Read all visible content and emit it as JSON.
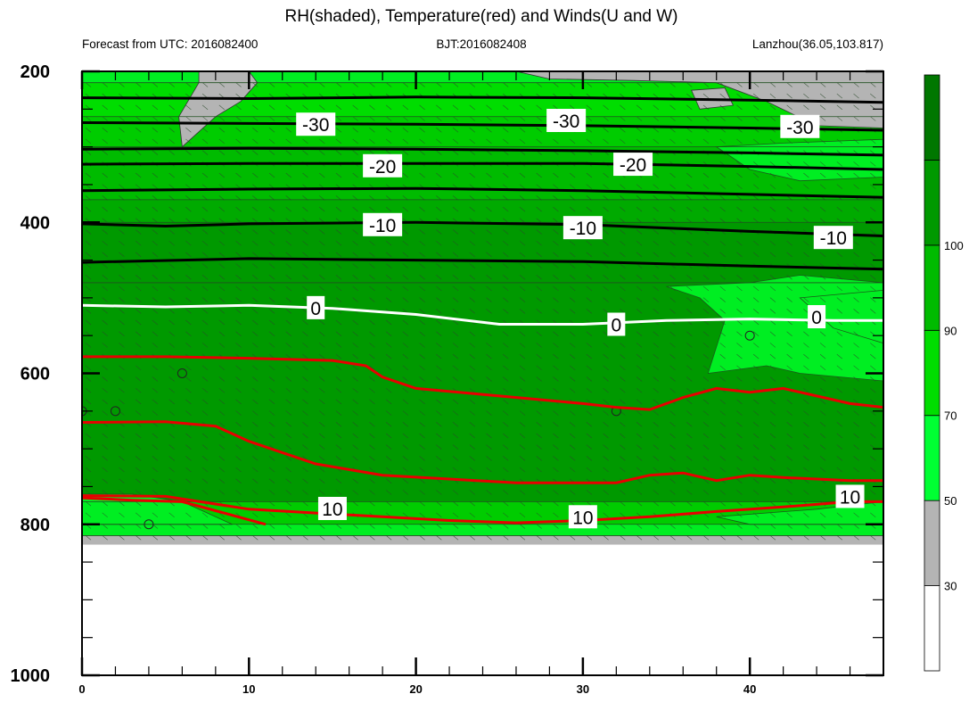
{
  "chart_data": {
    "type": "heatmap",
    "title": "RH(shaded), Temperature(red) and Winds(U and W)",
    "subtitle_left": "Forecast from UTC: 2016082400",
    "subtitle_center": "BJT:2016082408",
    "subtitle_right": "Lanzhou(36.05,103.817)",
    "xlabel": "",
    "ylabel": "",
    "xlim": [
      0,
      48
    ],
    "ylim": [
      200,
      1000
    ],
    "x_ticks": [
      0,
      10,
      20,
      30,
      40
    ],
    "y_ticks": [
      200,
      400,
      600,
      800,
      1000
    ],
    "colorbar": {
      "levels": [
        30,
        50,
        70,
        90,
        100
      ],
      "tick_labels": [
        "30",
        "50",
        "70",
        "90",
        "100"
      ],
      "colors": [
        "#ffffff",
        "#b4b4b4",
        "#00ff33",
        "#00dd00",
        "#00bb00",
        "#009900",
        "#007700"
      ]
    },
    "fields": {
      "surface_cutoff_hpa": 827,
      "rh_bands": [
        {
          "top": 200,
          "bottom": 215,
          "color": "#00ee22"
        },
        {
          "top": 215,
          "bottom": 260,
          "color": "#00dd00"
        },
        {
          "top": 260,
          "bottom": 300,
          "color": "#00cc00"
        },
        {
          "top": 300,
          "bottom": 370,
          "color": "#00bb00"
        },
        {
          "top": 370,
          "bottom": 400,
          "color": "#00aa00"
        },
        {
          "top": 400,
          "bottom": 480,
          "color": "#009900"
        },
        {
          "top": 480,
          "bottom": 770,
          "color": "#009900"
        },
        {
          "top": 770,
          "bottom": 800,
          "color": "#00cc00"
        },
        {
          "top": 800,
          "bottom": 815,
          "color": "#00ee22"
        },
        {
          "top": 815,
          "bottom": 827,
          "color": "#b4b4b4"
        }
      ],
      "gray_patches": [
        [
          [
            7,
            200
          ],
          [
            10,
            200
          ],
          [
            10.5,
            215
          ],
          [
            9.5,
            240
          ],
          [
            8,
            260
          ],
          [
            6,
            300
          ],
          [
            5.8,
            260
          ],
          [
            7,
            215
          ]
        ],
        [
          [
            26,
            200
          ],
          [
            48,
            200
          ],
          [
            48,
            275
          ],
          [
            44,
            272
          ],
          [
            41,
            240
          ],
          [
            38,
            215
          ],
          [
            33,
            212
          ],
          [
            28,
            210
          ]
        ],
        [
          [
            36.5,
            225
          ],
          [
            38.5,
            222
          ],
          [
            39,
            245
          ],
          [
            37,
            250
          ]
        ]
      ],
      "light_patches": [
        [
          [
            35,
            485
          ],
          [
            37,
            500
          ],
          [
            38.5,
            530
          ],
          [
            37.5,
            600
          ],
          [
            41,
            590
          ],
          [
            43,
            600
          ],
          [
            48,
            610
          ],
          [
            48,
            480
          ],
          [
            43,
            470
          ],
          [
            40,
            480
          ]
        ],
        [
          [
            43,
            500
          ],
          [
            48,
            490
          ],
          [
            48,
            560
          ],
          [
            45,
            540
          ]
        ],
        [
          [
            0,
            760
          ],
          [
            3,
            760
          ],
          [
            6,
            770
          ],
          [
            8,
            790
          ],
          [
            9,
            800
          ],
          [
            0,
            800
          ]
        ],
        [
          [
            38,
            790
          ],
          [
            44,
            780
          ],
          [
            48,
            770
          ],
          [
            48,
            800
          ],
          [
            40,
            800
          ]
        ],
        [
          [
            38,
            300
          ],
          [
            42,
            295
          ],
          [
            48,
            290
          ],
          [
            48,
            340
          ],
          [
            43,
            345
          ],
          [
            40,
            330
          ]
        ]
      ],
      "black_isotherms": [
        {
          "label": "-30",
          "points": [
            [
              0,
              235
            ],
            [
              10,
              236
            ],
            [
              20,
              234
            ],
            [
              30,
              235
            ],
            [
              40,
              238
            ],
            [
              48,
              241
            ]
          ]
        },
        {
          "label": "",
          "points": [
            [
              0,
              268
            ],
            [
              10,
              269
            ],
            [
              20,
              270
            ],
            [
              30,
              272
            ],
            [
              40,
              275
            ],
            [
              48,
              278
            ]
          ]
        },
        {
          "label": "",
          "points": [
            [
              0,
              303
            ],
            [
              10,
              302
            ],
            [
              20,
              303
            ],
            [
              30,
              305
            ],
            [
              40,
              308
            ],
            [
              48,
              311
            ]
          ]
        },
        {
          "label": "-20",
          "points": [
            [
              0,
              323
            ],
            [
              10,
              322
            ],
            [
              20,
              322
            ],
            [
              30,
              322
            ],
            [
              40,
              326
            ],
            [
              48,
              330
            ]
          ]
        },
        {
          "label": "",
          "points": [
            [
              0,
              358
            ],
            [
              10,
              356
            ],
            [
              20,
              355
            ],
            [
              30,
              358
            ],
            [
              40,
              363
            ],
            [
              48,
              367
            ]
          ]
        },
        {
          "label": "-10",
          "points": [
            [
              0,
              402
            ],
            [
              5,
              405
            ],
            [
              10,
              402
            ],
            [
              20,
              400
            ],
            [
              30,
              403
            ],
            [
              40,
              412
            ],
            [
              48,
              418
            ]
          ]
        },
        {
          "label": "",
          "points": [
            [
              0,
              453
            ],
            [
              10,
              448
            ],
            [
              20,
              450
            ],
            [
              30,
              452
            ],
            [
              40,
              458
            ],
            [
              48,
              462
            ]
          ]
        }
      ],
      "zero_isotherm": {
        "label": "0",
        "points": [
          [
            0,
            510
          ],
          [
            5,
            512
          ],
          [
            10,
            510
          ],
          [
            15,
            514
          ],
          [
            20,
            522
          ],
          [
            25,
            535
          ],
          [
            30,
            535
          ],
          [
            35,
            530
          ],
          [
            40,
            528
          ],
          [
            45,
            530
          ],
          [
            48,
            530
          ]
        ]
      },
      "red_isotherms": [
        {
          "label": "",
          "points": [
            [
              0,
              578
            ],
            [
              5,
              578
            ],
            [
              10,
              580
            ],
            [
              15,
              583
            ],
            [
              17,
              590
            ],
            [
              18,
              605
            ],
            [
              20,
              620
            ],
            [
              25,
              630
            ],
            [
              30,
              640
            ],
            [
              32,
              645
            ],
            [
              34,
              648
            ],
            [
              36,
              632
            ],
            [
              38,
              620
            ],
            [
              40,
              625
            ],
            [
              42,
              620
            ],
            [
              44,
              630
            ],
            [
              46,
              640
            ],
            [
              48,
              645
            ]
          ]
        },
        {
          "label": "",
          "points": [
            [
              0,
              665
            ],
            [
              5,
              664
            ],
            [
              8,
              670
            ],
            [
              10,
              690
            ],
            [
              12,
              705
            ],
            [
              14,
              720
            ],
            [
              18,
              735
            ],
            [
              22,
              740
            ],
            [
              26,
              745
            ],
            [
              30,
              745
            ],
            [
              32,
              745
            ],
            [
              34,
              735
            ],
            [
              36,
              732
            ],
            [
              38,
              742
            ],
            [
              40,
              735
            ],
            [
              42,
              738
            ],
            [
              44,
              740
            ],
            [
              46,
              742
            ],
            [
              48,
              742
            ]
          ]
        },
        {
          "label": "10",
          "points": [
            [
              0,
              762
            ],
            [
              5,
              763
            ],
            [
              10,
              780
            ],
            [
              14,
              785
            ],
            [
              18,
              790
            ],
            [
              22,
              795
            ],
            [
              26,
              798
            ],
            [
              30,
              795
            ],
            [
              34,
              790
            ],
            [
              38,
              783
            ],
            [
              42,
              777
            ],
            [
              46,
              770
            ],
            [
              48,
              770
            ]
          ]
        },
        {
          "label": "",
          "points": [
            [
              0,
              765
            ],
            [
              3,
              768
            ],
            [
              6,
              770
            ],
            [
              8,
              782
            ],
            [
              11,
              800
            ]
          ]
        }
      ],
      "contour_label_boxes": [
        {
          "text": "-30",
          "x": 14,
          "p": 270
        },
        {
          "text": "-30",
          "x": 29,
          "p": 265
        },
        {
          "text": "-30",
          "x": 43,
          "p": 273
        },
        {
          "text": "-20",
          "x": 18,
          "p": 325
        },
        {
          "text": "-20",
          "x": 33,
          "p": 323
        },
        {
          "text": "-10",
          "x": 18,
          "p": 403
        },
        {
          "text": "-10",
          "x": 30,
          "p": 407
        },
        {
          "text": "-10",
          "x": 45,
          "p": 420
        },
        {
          "text": "0",
          "x": 14,
          "p": 513
        },
        {
          "text": "0",
          "x": 32,
          "p": 535
        },
        {
          "text": "0",
          "x": 44,
          "p": 525
        },
        {
          "text": "10",
          "x": 15,
          "p": 779
        },
        {
          "text": "10",
          "x": 30,
          "p": 790
        },
        {
          "text": "10",
          "x": 46,
          "p": 763
        }
      ],
      "wind_levels": [
        210,
        225,
        240,
        255,
        270,
        285,
        300,
        315,
        330,
        345,
        360,
        375,
        390,
        405,
        420,
        435,
        450,
        465,
        480,
        495,
        510,
        525,
        540,
        555,
        570,
        585,
        600,
        615,
        630,
        645,
        660,
        675,
        690,
        705,
        720,
        735,
        750,
        765,
        780,
        795,
        810
      ],
      "calm_points": [
        [
          6,
          600
        ],
        [
          2,
          650
        ],
        [
          4,
          800
        ],
        [
          32,
          650
        ],
        [
          40,
          550
        ],
        [
          0,
          650
        ]
      ]
    }
  }
}
